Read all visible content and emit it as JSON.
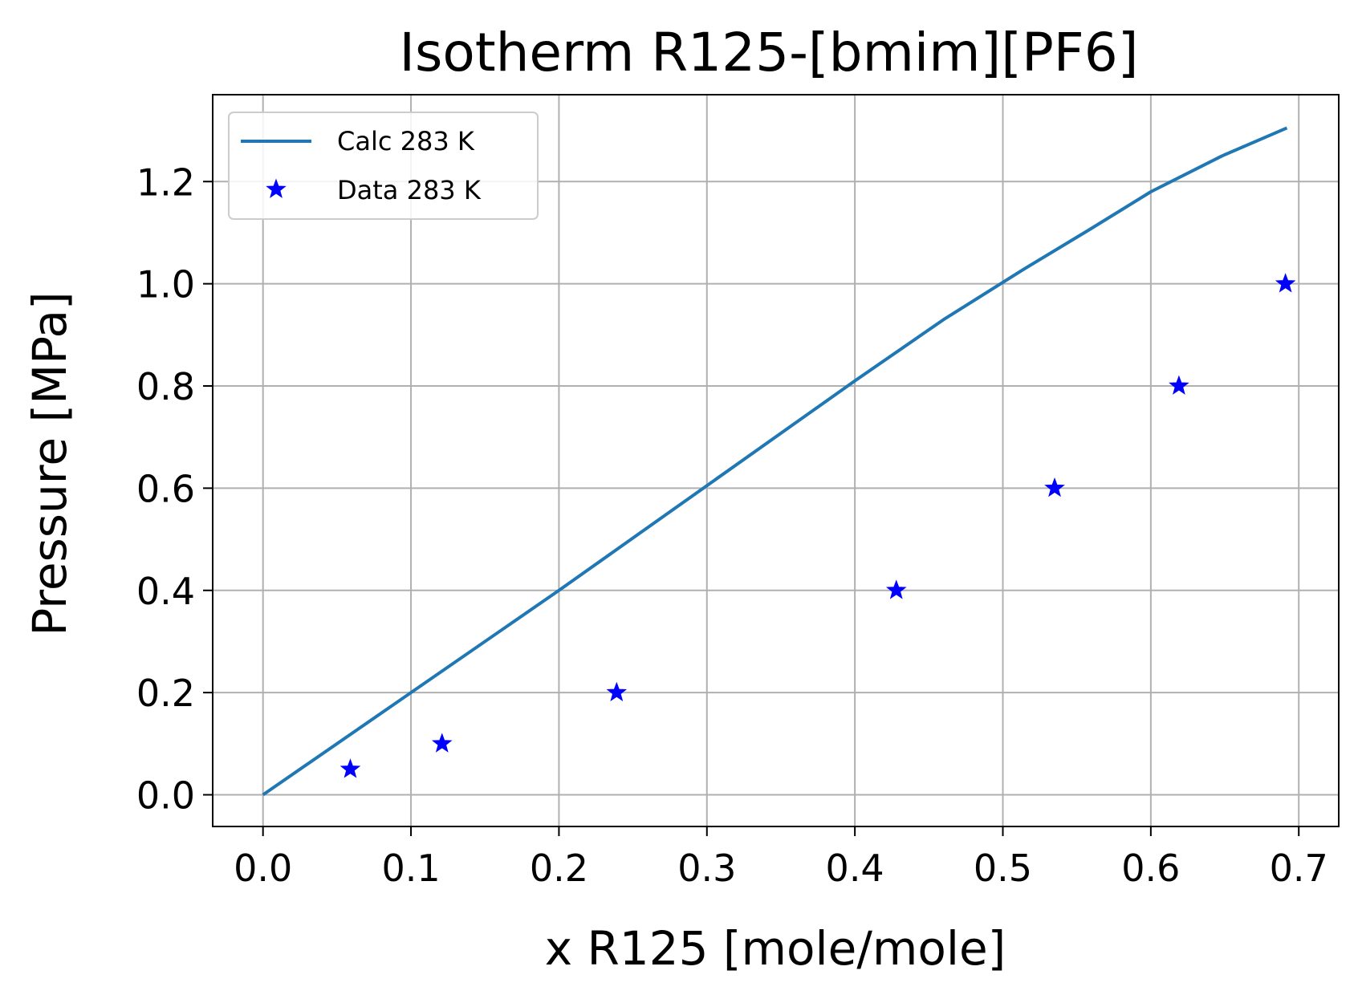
{
  "chart_data": {
    "type": "line",
    "title": "Isotherm R125-[bmim][PF6]",
    "xlabel": "x R125 [mole/mole]",
    "ylabel": "Pressure [MPa]",
    "xlim": [
      -0.034,
      0.727
    ],
    "ylim": [
      -0.062,
      1.37
    ],
    "xticks": [
      0.0,
      0.1,
      0.2,
      0.3,
      0.4,
      0.5,
      0.6,
      0.7
    ],
    "xtick_labels": [
      "0.0",
      "0.1",
      "0.2",
      "0.3",
      "0.4",
      "0.5",
      "0.6",
      "0.7"
    ],
    "yticks": [
      0.0,
      0.2,
      0.4,
      0.6,
      0.8,
      1.0,
      1.2
    ],
    "ytick_labels": [
      "0.0",
      "0.2",
      "0.4",
      "0.6",
      "0.8",
      "1.0",
      "1.2"
    ],
    "grid": true,
    "legend_position": "top-left",
    "series": [
      {
        "name": "Calc 283 K",
        "style": "line",
        "color": "#1f77b4",
        "x": [
          0.0,
          0.1,
          0.2,
          0.3,
          0.4,
          0.46,
          0.515,
          0.558,
          0.6,
          0.648,
          0.692
        ],
        "y": [
          0.0,
          0.2,
          0.4,
          0.605,
          0.81,
          0.93,
          1.03,
          1.105,
          1.18,
          1.25,
          1.305
        ]
      },
      {
        "name": "Data 283 K",
        "style": "marker",
        "marker": "star",
        "color": "#0000ff",
        "x": [
          0.059,
          0.121,
          0.239,
          0.428,
          0.535,
          0.619,
          0.691
        ],
        "y": [
          0.05,
          0.1,
          0.2,
          0.4,
          0.6,
          0.8,
          1.0
        ]
      }
    ]
  }
}
